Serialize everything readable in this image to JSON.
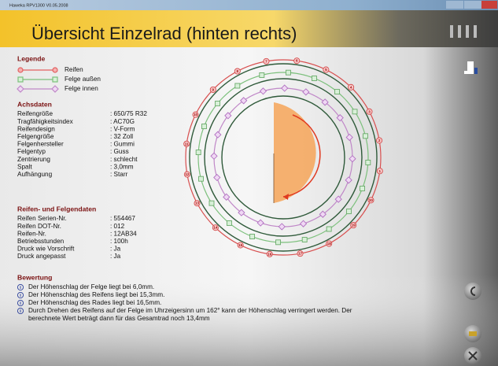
{
  "window": {
    "title": "Haweka RPV1300 V0.05.2008"
  },
  "header": {
    "title": "Übersicht Einzelrad (hinten rechts)"
  },
  "legend": {
    "heading": "Legende",
    "items": [
      "Reifen",
      "Felge außen",
      "Felge innen"
    ]
  },
  "achsdaten": {
    "heading": "Achsdaten",
    "rows": [
      [
        "Reifengröße",
        ": 650/75 R32"
      ],
      [
        "Tragfähigkeitsindex",
        ": AC70G"
      ],
      [
        "Reifendesign",
        ": V-Form"
      ],
      [
        "Felgengröße",
        ": 32 Zoll"
      ],
      [
        "Felgenhersteller",
        ": Gummi"
      ],
      [
        "Felgentyp",
        ": Guss"
      ],
      [
        "Zentrierung",
        ": schlecht"
      ],
      [
        "Spalt",
        ": 3,0mm"
      ],
      [
        "Aufhängung",
        ": Starr"
      ]
    ]
  },
  "reifendaten": {
    "heading": "Reifen- und Felgendaten",
    "rows": [
      [
        "Reifen Serien-Nr.",
        ": 554467"
      ],
      [
        "Reifen DOT-Nr.",
        ": 012"
      ],
      [
        "Reifen-Nr.",
        ": 12AB34"
      ],
      [
        "Betriebsstunden",
        ": 100h"
      ],
      [
        "Druck wie Vorschrift",
        ": Ja"
      ],
      [
        "Druck angepasst",
        ": Ja"
      ]
    ]
  },
  "bewertung": {
    "heading": "Bewertung",
    "lines": [
      "Der Höhenschlag der Felge liegt bei 6,0mm.",
      "Der Höhenschlag des Reifens liegt bei 15,3mm.",
      "Der Höhenschlag des Rades liegt bei 16,5mm.",
      "Durch Drehen des Reifens auf der Felge im Uhrzeigersinn um 162° kann der Höhenschlag verringert werden. Der berechnete Wert beträgt dann für das Gesamtrad noch 13,4mm"
    ]
  },
  "wheel": {
    "ring_labels": [
      "1",
      "2",
      "3",
      "4",
      "5",
      "6",
      "7",
      "8",
      "9",
      "10",
      "11",
      "12",
      "13",
      "14",
      "15",
      "16",
      "17",
      "18",
      "19",
      "20"
    ]
  }
}
